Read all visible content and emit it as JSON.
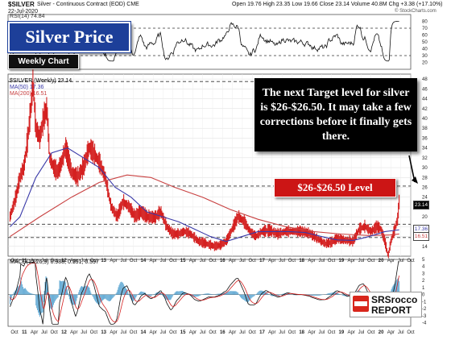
{
  "header": {
    "symbol": "$SILVER",
    "contract": "Silver - Continuous Contract (EOD) CME",
    "date": "22-Jul-2020",
    "ohlc": "Open 19.76 High 23.35 Low 19.66 Close 23.14 Volume 40.8M Chg +3.38 (+17.10%)",
    "watermark": "© StockCharts.com"
  },
  "title_box": "Silver Price",
  "subtitle_box": "Weekly Chart",
  "annotation": "The next Target level for silver is $26-$26.50. It may take a few corrections before it finally gets there.",
  "level_label": "$26-$26.50 Level",
  "logo": {
    "line1": "SRSrocco",
    "line2": "REPORT"
  },
  "legend": {
    "rsi": "RSI(14) 74.84",
    "price": "$SILVER (Weekly) 23.14",
    "ma50": "MA(50) 17.36",
    "ma200": "MA(200) 16.51",
    "macd": "MACD(12,26,9) 0.988, 0.391, 0.597"
  },
  "price_tags": {
    "last": "23.14",
    "ma50": "17.36",
    "ma200": "16.51"
  },
  "colors": {
    "price_bar": "#d42020",
    "ma50": "#3a3aa8",
    "ma200": "#c84040",
    "title_bg": "#1d3f99",
    "level_bg": "#cc1515"
  },
  "chart_data": {
    "type": "line",
    "title": "$SILVER (Weekly)",
    "x_axis_labels": [
      "Oct",
      "11",
      "Apr",
      "Jul",
      "Oct",
      "12",
      "Apr",
      "Jul",
      "Oct",
      "13",
      "Apr",
      "Jul",
      "Oct",
      "14",
      "Apr",
      "Jul",
      "Oct",
      "15",
      "Apr",
      "Jul",
      "Oct",
      "16",
      "Apr",
      "Jul",
      "Oct",
      "17",
      "Apr",
      "Jul",
      "Oct",
      "18",
      "Apr",
      "Jul",
      "Oct",
      "19",
      "Apr",
      "Jul",
      "Oct",
      "20",
      "Apr",
      "Jul",
      "Oct"
    ],
    "price_y_ticks": [
      14,
      16,
      18,
      20,
      22,
      24,
      26,
      28,
      30,
      32,
      34,
      36,
      38,
      40,
      42,
      44,
      46,
      48
    ],
    "rsi_y_ticks": [
      20,
      30,
      40,
      50,
      60,
      70,
      80
    ],
    "macd_y_ticks": [
      -4,
      -3,
      -2,
      -1,
      0,
      1,
      2,
      3,
      4,
      5
    ],
    "ylim": [
      12,
      49
    ],
    "horizontal_levels": [
      26.25,
      47.5,
      18.5,
      15.8
    ],
    "series": [
      {
        "name": "$SILVER (Weekly)",
        "x": [
          2010.75,
          2010.9,
          2011.0,
          2011.1,
          2011.2,
          2011.3,
          2011.33,
          2011.4,
          2011.5,
          2011.6,
          2011.68,
          2011.75,
          2011.85,
          2011.95,
          2012.05,
          2012.15,
          2012.3,
          2012.45,
          2012.6,
          2012.75,
          2012.85,
          2013.0,
          2013.15,
          2013.3,
          2013.45,
          2013.6,
          2013.75,
          2013.9,
          2014.05,
          2014.2,
          2014.4,
          2014.55,
          2014.7,
          2014.85,
          2015.0,
          2015.15,
          2015.3,
          2015.5,
          2015.7,
          2015.9,
          2016.05,
          2016.2,
          2016.35,
          2016.5,
          2016.65,
          2016.8,
          2016.95,
          2017.1,
          2017.3,
          2017.5,
          2017.7,
          2017.9,
          2018.1,
          2018.3,
          2018.5,
          2018.7,
          2018.85,
          2019.0,
          2019.2,
          2019.4,
          2019.55,
          2019.7,
          2019.85,
          2020.0,
          2020.1,
          2020.2,
          2020.28,
          2020.35,
          2020.45,
          2020.52,
          2020.56
        ],
        "values": [
          20,
          24,
          28,
          30,
          36,
          44,
          47.5,
          38,
          36,
          40,
          42,
          32,
          30,
          29,
          31,
          34,
          29,
          28,
          30,
          34,
          33,
          31,
          28,
          22,
          20,
          23,
          22,
          20,
          21,
          20,
          19.8,
          21,
          18,
          16.5,
          16.5,
          17,
          16.5,
          15,
          14.5,
          14,
          14.2,
          15,
          17.5,
          20,
          19,
          17,
          16,
          17,
          17.2,
          16.5,
          17,
          17,
          17,
          16.6,
          15.5,
          14.5,
          14.8,
          15.6,
          15.2,
          15,
          17.5,
          18,
          17,
          18,
          17.5,
          15,
          12,
          15,
          17.5,
          19.5,
          23.14
        ]
      },
      {
        "name": "MA(50)",
        "x": [
          2010.75,
          2011.0,
          2011.4,
          2011.8,
          2012.2,
          2012.6,
          2013.0,
          2013.4,
          2013.8,
          2014.2,
          2014.6,
          2015.0,
          2015.4,
          2015.8,
          2016.2,
          2016.6,
          2017.0,
          2017.4,
          2017.8,
          2018.2,
          2018.6,
          2019.0,
          2019.4,
          2019.8,
          2020.2,
          2020.56
        ],
        "values": [
          18,
          20,
          28,
          33,
          34,
          32,
          30,
          26,
          24,
          21,
          20,
          19,
          17.5,
          16,
          15,
          16,
          17,
          17,
          17,
          16.8,
          16,
          15.3,
          15.2,
          16,
          17,
          17.36
        ]
      },
      {
        "name": "MA(200)",
        "x": [
          2010.75,
          2011.5,
          2012.3,
          2013.0,
          2013.7,
          2014.3,
          2014.9,
          2015.6,
          2016.3,
          2017.0,
          2017.7,
          2018.4,
          2019.1,
          2019.8,
          2020.3,
          2020.56
        ],
        "values": [
          16,
          20,
          24,
          27,
          28.5,
          28,
          26,
          24,
          21.5,
          19.5,
          18,
          17,
          16.5,
          16.2,
          16.3,
          16.51
        ]
      }
    ]
  }
}
